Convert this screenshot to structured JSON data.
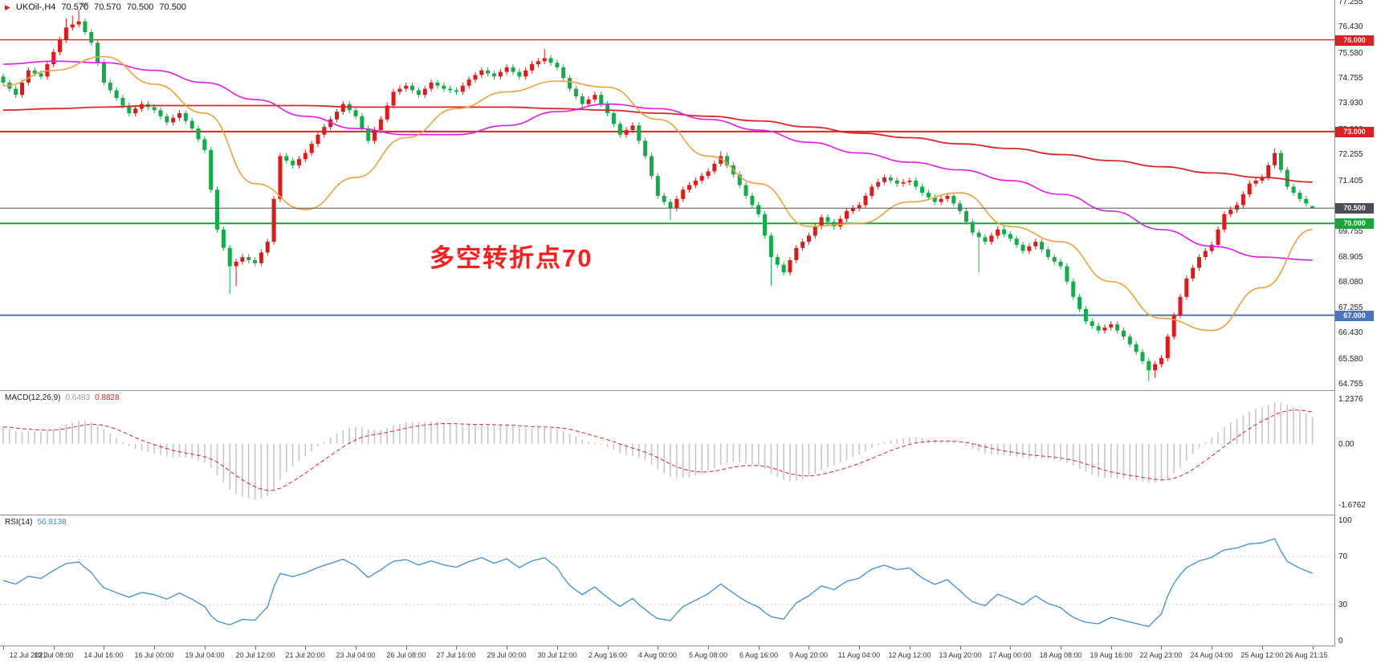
{
  "header": {
    "symbol": "UKOil-,H4",
    "open": "70.570",
    "high": "70.570",
    "low": "70.500",
    "close": "70.500"
  },
  "annotation": {
    "text": "多空转折点70"
  },
  "indicators": {
    "macd": {
      "label": "MACD(12,26,9)",
      "value": "0.6483",
      "signal_value": "0.8828",
      "axis_labels": [
        {
          "text": "1.2376",
          "value": 1.2376
        },
        {
          "text": "0.00",
          "value": 0
        },
        {
          "text": "-1.6762",
          "value": -1.6762
        }
      ]
    },
    "rsi": {
      "label": "RSI(14)",
      "value": "56.8138",
      "axis_labels": [
        {
          "text": "100",
          "value": 100
        },
        {
          "text": "70",
          "value": 70
        },
        {
          "text": "30",
          "value": 30
        },
        {
          "text": "0",
          "value": 0
        }
      ],
      "levels": [
        70,
        30
      ]
    }
  },
  "colors": {
    "up": "#e31818",
    "down": "#11ad49",
    "ma_slow": "#d92626",
    "ma_medium": "#e818e8",
    "ma_fast": "#eda23a",
    "level_red": "#e02020",
    "level_green": "#16a53a",
    "level_blue": "#4a74bc",
    "current_line": "#555555",
    "current_badge": "#4d4d55",
    "macd_hist": "#c6c6c6",
    "macd_signal": "#d92626",
    "rsi_line": "#3e8ed0",
    "rsi_levels": "#c8cdd8"
  },
  "chart_data": {
    "type": "candlestick",
    "symbol": "UKOil-",
    "timeframe": "H4",
    "y_range": [
      64.55,
      77.3
    ],
    "price_axis_labels": [
      "77.255",
      "76.430",
      "75.580",
      "74.755",
      "73.930",
      "73.080",
      "72.255",
      "71.405",
      "69.755",
      "68.905",
      "68.080",
      "67.255",
      "66.430",
      "65.580",
      "64.755"
    ],
    "time_labels": [
      "12 Jul 2021",
      "13 Jul 08:00",
      "14 Jul 16:00",
      "16 Jul 00:00",
      "19 Jul 04:00",
      "20 Jul 12:00",
      "21 Jul 20:00",
      "23 Jul 04:00",
      "26 Jul 08:00",
      "27 Jul 16:00",
      "29 Jul 00:00",
      "30 Jul 12:00",
      "2 Aug 16:00",
      "4 Aug 00:00",
      "5 Aug 08:00",
      "6 Aug 16:00",
      "9 Aug 20:00",
      "11 Aug 04:00",
      "12 Aug 12:00",
      "13 Aug 20:00",
      "17 Aug 00:00",
      "18 Aug 08:00",
      "19 Aug 16:00",
      "22 Aug 23:00",
      "24 Aug 04:00",
      "25 Aug 12:00",
      "26 Aug 21:15"
    ],
    "x_gridline_step": 8,
    "levels": [
      {
        "value": 76.0,
        "label": "76.000",
        "color": "#e02020",
        "width": 1.3
      },
      {
        "value": 73.0,
        "label": "73.000",
        "color": "#e02020",
        "width": 2
      },
      {
        "value": 70.0,
        "label": "70.000",
        "color": "#16a53a",
        "width": 2
      },
      {
        "value": 67.0,
        "label": "67.000",
        "color": "#4a74bc",
        "width": 2
      }
    ],
    "current_price": {
      "value": 70.5,
      "label": "70.500"
    },
    "candles": {
      "first_open": 74.8,
      "default_wick": 0.1,
      "closes": [
        74.6,
        74.4,
        74.2,
        74.6,
        75.0,
        74.9,
        74.8,
        75.2,
        75.6,
        76.0,
        76.4,
        76.5,
        76.6,
        76.25,
        75.9,
        75.25,
        74.6,
        74.35,
        74.1,
        73.85,
        73.6,
        73.75,
        73.9,
        73.8,
        73.7,
        73.5,
        73.3,
        73.45,
        73.6,
        73.35,
        73.1,
        72.75,
        72.4,
        71.1,
        69.8,
        69.2,
        68.6,
        68.75,
        68.9,
        68.8,
        68.7,
        69.05,
        69.4,
        70.8,
        72.2,
        72.05,
        71.9,
        72.1,
        72.3,
        72.6,
        72.9,
        73.15,
        73.4,
        73.65,
        73.9,
        73.7,
        73.5,
        73.1,
        72.7,
        73.05,
        73.4,
        73.85,
        74.3,
        74.4,
        74.5,
        74.35,
        74.2,
        74.4,
        74.6,
        74.5,
        74.4,
        74.35,
        74.3,
        74.5,
        74.7,
        74.85,
        75.0,
        74.9,
        74.8,
        74.95,
        75.1,
        74.95,
        74.8,
        75.0,
        75.2,
        75.3,
        75.4,
        75.25,
        75.1,
        74.75,
        74.4,
        74.15,
        73.9,
        74.05,
        74.2,
        73.9,
        73.6,
        73.25,
        72.9,
        73.05,
        73.2,
        72.7,
        72.2,
        71.55,
        70.9,
        70.7,
        70.5,
        70.8,
        71.1,
        71.25,
        71.4,
        71.55,
        71.7,
        71.95,
        72.2,
        71.9,
        71.6,
        71.25,
        70.9,
        70.6,
        70.3,
        69.6,
        68.9,
        68.65,
        68.4,
        68.8,
        69.2,
        69.4,
        69.6,
        69.9,
        70.2,
        70.05,
        69.9,
        70.15,
        70.4,
        70.5,
        70.6,
        70.9,
        71.2,
        71.35,
        71.5,
        71.4,
        71.3,
        71.35,
        71.4,
        71.2,
        71.0,
        70.85,
        70.7,
        70.8,
        70.9,
        70.65,
        70.4,
        70.05,
        69.7,
        69.55,
        69.4,
        69.6,
        69.8,
        69.65,
        69.5,
        69.3,
        69.1,
        69.25,
        69.4,
        69.15,
        68.9,
        68.75,
        68.6,
        68.1,
        67.6,
        67.2,
        66.8,
        66.65,
        66.5,
        66.6,
        66.7,
        66.5,
        66.3,
        66.05,
        65.8,
        65.5,
        65.2,
        65.4,
        65.6,
        66.3,
        67.0,
        67.6,
        68.2,
        68.55,
        68.9,
        69.1,
        69.3,
        69.8,
        70.3,
        70.45,
        70.6,
        70.95,
        71.3,
        71.4,
        71.5,
        71.9,
        72.3,
        71.75,
        71.2,
        71.0,
        70.8,
        70.65,
        70.5
      ],
      "overrides": {
        "10": {
          "h": 76.7
        },
        "11": {
          "h": 76.8
        },
        "12": {
          "h": 77.0
        },
        "36": {
          "l": 67.7
        },
        "37": {
          "l": 67.95
        },
        "86": {
          "h": 75.7
        },
        "106": {
          "l": 70.1
        },
        "114": {
          "h": 72.35
        },
        "122": {
          "l": 67.95
        },
        "155": {
          "l": 68.4
        },
        "182": {
          "l": 64.85
        },
        "183": {
          "l": 64.95
        },
        "202": {
          "h": 72.45
        },
        "208": {
          "o": 70.57,
          "h": 70.57,
          "l": 70.5,
          "c": 70.5
        }
      }
    },
    "moving_averages": [
      {
        "name": "ma-slow",
        "color": "#d92626",
        "width": 1.8,
        "step": 8,
        "values": [
          73.7,
          73.75,
          73.8,
          73.85,
          73.85,
          73.85,
          73.85,
          73.8,
          73.8,
          73.8,
          73.8,
          73.75,
          73.7,
          73.6,
          73.5,
          73.35,
          73.15,
          72.95,
          72.8,
          72.6,
          72.45,
          72.25,
          72.05,
          71.85,
          71.65,
          71.5,
          71.35
        ]
      },
      {
        "name": "ma-medium",
        "color": "#e818e8",
        "width": 1.6,
        "step": 8,
        "values": [
          75.2,
          75.3,
          75.25,
          75.0,
          74.6,
          74.05,
          73.5,
          73.1,
          72.9,
          72.9,
          73.2,
          73.65,
          73.9,
          73.75,
          73.4,
          73.05,
          72.65,
          72.3,
          72.0,
          71.75,
          71.4,
          70.95,
          70.4,
          69.8,
          69.25,
          68.9,
          68.8
        ]
      },
      {
        "name": "ma-fast",
        "color": "#eda23a",
        "width": 1.6,
        "step": 8,
        "values": [
          74.5,
          75.0,
          75.45,
          74.55,
          73.6,
          71.3,
          70.45,
          71.5,
          72.8,
          73.75,
          74.3,
          74.65,
          74.45,
          73.4,
          72.2,
          71.3,
          69.9,
          70.0,
          70.7,
          71.0,
          69.9,
          69.4,
          68.1,
          66.9,
          66.5,
          67.9,
          69.8
        ]
      }
    ],
    "macd_panel": {
      "y_range": [
        -1.95,
        1.45
      ],
      "params": [
        12,
        26,
        9
      ]
    },
    "rsi_panel": {
      "y_range": [
        0,
        100
      ],
      "period": 14,
      "levels": [
        70,
        30
      ]
    }
  }
}
